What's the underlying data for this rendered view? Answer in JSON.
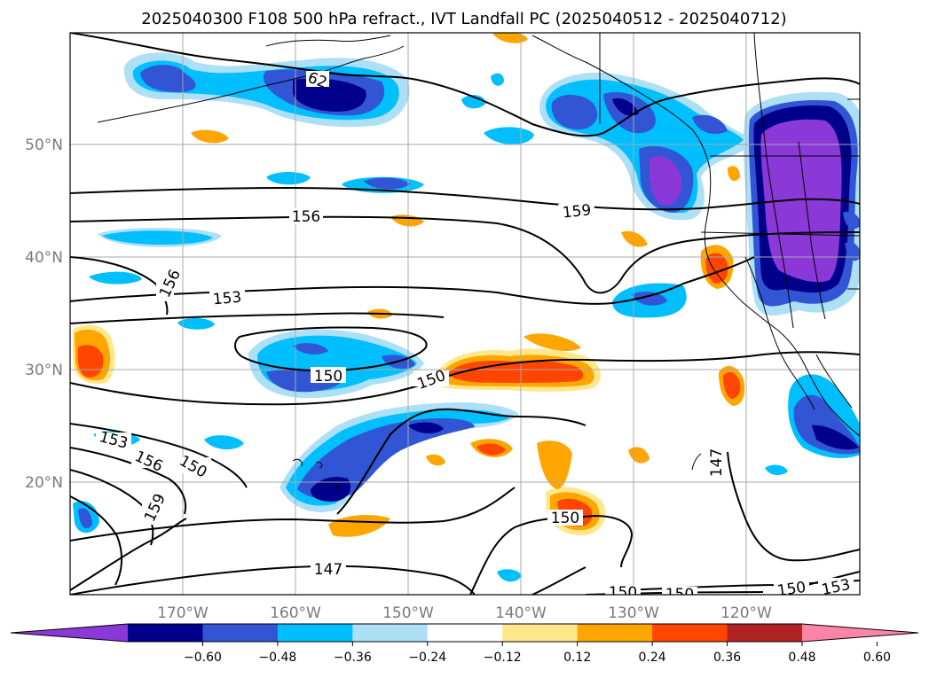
{
  "title": "2025040300 F108 500 hPa refract., IVT Landfall PC (2025040512 - 2025040712)",
  "lat_labels": [
    "50°N",
    "40°N",
    "30°N",
    "20°N"
  ],
  "lon_labels": [
    "170°W",
    "160°W",
    "150°W",
    "140°W",
    "130°W",
    "120°W"
  ],
  "colorbar": {
    "ticks": [
      "−0.60",
      "−0.48",
      "−0.36",
      "−0.24",
      "−0.12",
      "0.12",
      "0.24",
      "0.36",
      "0.48",
      "0.60"
    ],
    "colors": [
      "#8a38d8",
      "#00008b",
      "#3155d4",
      "#00bfff",
      "#ade0f7",
      "#ffffff",
      "#ffe88a",
      "#ffa500",
      "#ff4500",
      "#b22222",
      "#ff85a8"
    ]
  },
  "contour_labels": [
    "156",
    "159",
    "156",
    "153",
    "150",
    "150",
    "153",
    "156",
    "150",
    "159",
    "147",
    "150",
    "147",
    "150",
    "150",
    "150",
    "153",
    "62"
  ]
}
